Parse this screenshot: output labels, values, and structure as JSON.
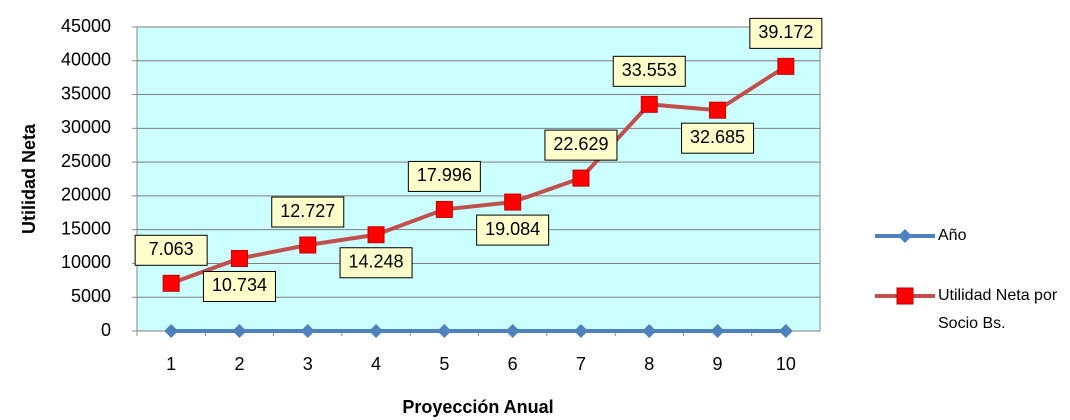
{
  "chart_data": {
    "type": "line",
    "xlabel": "Proyección Anual",
    "ylabel": "Utilidad Neta",
    "categories": [
      "1",
      "2",
      "3",
      "4",
      "5",
      "6",
      "7",
      "8",
      "9",
      "10"
    ],
    "series": [
      {
        "name": "Año",
        "color": "#4f81bd",
        "marker": "diamond",
        "values": [
          0,
          0,
          0,
          0,
          0,
          0,
          0,
          0,
          0,
          0
        ]
      },
      {
        "name": "Utilidad Neta por Socio Bs.",
        "color": "#c0504d",
        "marker_color": "#ff0000",
        "marker": "square",
        "values": [
          7063,
          10734,
          12727,
          14248,
          17996,
          19084,
          22629,
          33553,
          32685,
          39172
        ],
        "value_labels": [
          "7.063",
          "10.734",
          "12.727",
          "14.248",
          "17.996",
          "19.084",
          "22.629",
          "33.553",
          "32.685",
          "39.172"
        ]
      }
    ],
    "ylim": [
      0,
      45000
    ],
    "yticks": [
      0,
      5000,
      10000,
      15000,
      20000,
      25000,
      30000,
      35000,
      40000,
      45000
    ],
    "grid": true,
    "legend": "right"
  }
}
